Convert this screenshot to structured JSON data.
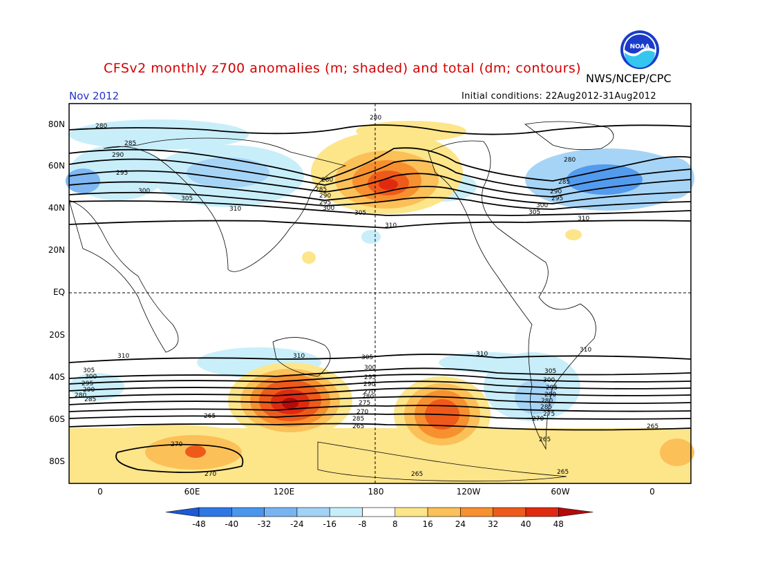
{
  "title": "CFSv2 monthly z700 anomalies (m; shaded) and total (dm; contours)",
  "agency": "NWS/NCEP/CPC",
  "valid_month": "Nov 2012",
  "initial_conditions": "Initial conditions: 22Aug2012-31Aug2012",
  "logo_text": "NOAA",
  "lat_labels": [
    "80N",
    "60N",
    "40N",
    "20N",
    "EQ",
    "20S",
    "40S",
    "60S",
    "80S"
  ],
  "lon_labels": [
    "0",
    "60E",
    "120E",
    "180",
    "120W",
    "60W",
    "0"
  ],
  "colorbar": {
    "labels": [
      "-48",
      "-40",
      "-32",
      "-24",
      "-16",
      "-8",
      "8",
      "16",
      "24",
      "32",
      "40",
      "48"
    ],
    "colors": [
      "#1e5ad8",
      "#2e78e6",
      "#4a96ee",
      "#78b4f2",
      "#a2d2f6",
      "#c6eefa",
      "#ffffff",
      "#fde58a",
      "#fcc058",
      "#f7902e",
      "#ee5a1a",
      "#e02a10",
      "#b40a0a"
    ]
  },
  "contour_labels": [
    "280",
    "285",
    "290",
    "295",
    "300",
    "305",
    "310",
    "265",
    "270",
    "275"
  ]
}
